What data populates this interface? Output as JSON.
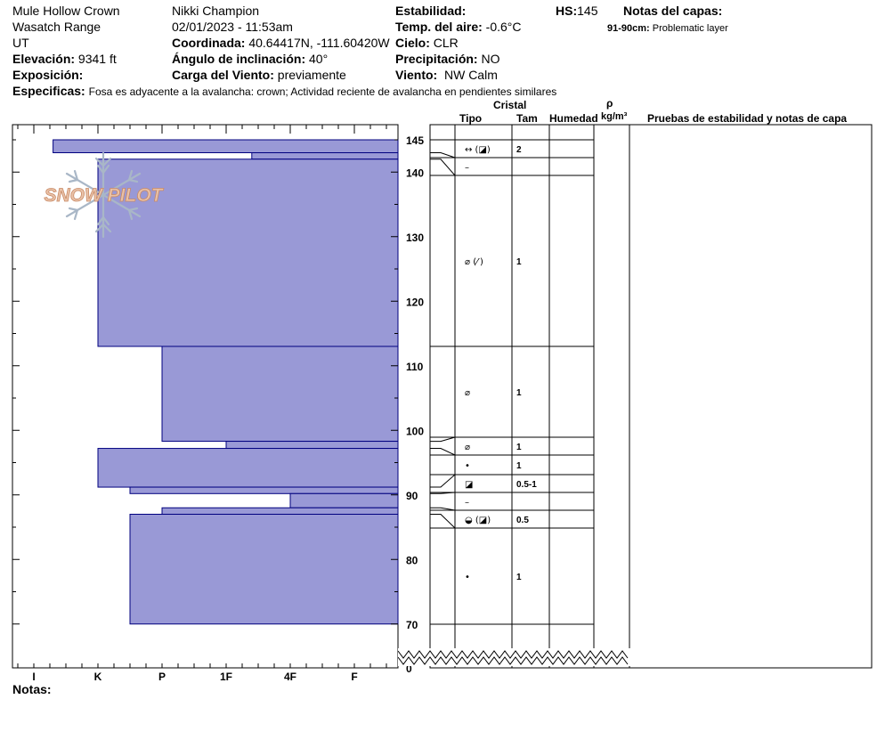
{
  "header": {
    "location": "Mule Hollow Crown",
    "range": "Wasatch Range",
    "state": "UT",
    "elevation_label": "Elevación:",
    "elevation": "9341 ft",
    "exposure_label": "Exposición:",
    "exposure": "",
    "observer": "Nikki Champion",
    "datetime": "02/01/2023 - 11:53am",
    "coord_label": "Coordinada:",
    "coord": "40.64417N, -111.60420W",
    "slope_label": "Ángulo de inclinación:",
    "slope": "40°",
    "wind_load_label": "Carga del Viento:",
    "wind_load": "previamente",
    "stability_label": "Estabilidad:",
    "stability": "",
    "air_temp_label": "Temp. del aire:",
    "air_temp": "-0.6°C",
    "sky_label": "Cielo:",
    "sky": "CLR",
    "precip_label": "Precipitación:",
    "precip": "NO",
    "wind_label": "Viento:",
    "wind": "NW Calm",
    "hs_label": "HS:",
    "hs": "145",
    "layer_notes_label": "Notas del capas:",
    "layer_note_range": "91-90cm:",
    "layer_note_text": "Problematic layer",
    "specifics_label": "Especificas:",
    "specifics": "Fosa es adyacente a la avalancha: crown;  Actividad reciente de avalancha en pendientes similares"
  },
  "columns": {
    "crystal": "Cristal",
    "type": "Tipo",
    "size": "Tam",
    "moisture": "Humedad",
    "rho": "ρ",
    "density_unit": "kg/m³",
    "tests": "Pruebas de estabilidad y notas de capa"
  },
  "footer": {
    "notes_label": "Notas:",
    "notes": ""
  },
  "logo_text": "SNOW PILOT",
  "colors": {
    "hardness_fill": "#9999d6",
    "hardness_stroke": "#00007f",
    "logo_orange": "#e9c2a8",
    "logo_blue": "#a9b7c7"
  },
  "chart_data": {
    "type": "bar",
    "orientation": "horizontal",
    "title": "",
    "hardness_scale": [
      "I",
      "K",
      "P",
      "1F",
      "4F",
      "F"
    ],
    "y_axis": {
      "range": [
        0,
        145
      ],
      "break_below": 70,
      "ticks": [
        145,
        140,
        130,
        120,
        110,
        100,
        90,
        80,
        70,
        0
      ]
    },
    "hardness_layers": [
      {
        "top": 145,
        "bottom": 143,
        "hardness_index": 0.3
      },
      {
        "top": 143,
        "bottom": 142,
        "hardness_index": 3.4
      },
      {
        "top": 142,
        "bottom": 113,
        "hardness_index": 1.0
      },
      {
        "top": 113,
        "bottom": 98.3,
        "hardness_index": 2.0
      },
      {
        "top": 98.3,
        "bottom": 97.2,
        "hardness_index": 3.0
      },
      {
        "top": 97.2,
        "bottom": 91.2,
        "hardness_index": 1.0
      },
      {
        "top": 91.2,
        "bottom": 90.2,
        "hardness_index": 1.5
      },
      {
        "top": 90.2,
        "bottom": 88.0,
        "hardness_index": 4.0
      },
      {
        "top": 88.0,
        "bottom": 87.0,
        "hardness_index": 2.0
      },
      {
        "top": 87.0,
        "bottom": 70.0,
        "hardness_index": 1.5
      }
    ],
    "crystal_layers": [
      {
        "top": 145,
        "bottom": 143,
        "type": "",
        "size": ""
      },
      {
        "top": 143,
        "bottom": 142,
        "type": "↔ (◪)",
        "size": "2"
      },
      {
        "top": 142,
        "bottom": 140,
        "type": "–",
        "size": ""
      },
      {
        "top": 140,
        "bottom": 113,
        "type": "⌀ (⁄′)",
        "size": "1"
      },
      {
        "top": 113,
        "bottom": 98.3,
        "type": "⌀",
        "size": "1"
      },
      {
        "top": 98.3,
        "bottom": 96.3,
        "type": "⌀",
        "size": "1"
      },
      {
        "top": 96.3,
        "bottom": 92.3,
        "type": "•",
        "size": "1"
      },
      {
        "top": 92.3,
        "bottom": 90.2,
        "type": "◪",
        "size": "0.5-1"
      },
      {
        "top": 90.2,
        "bottom": 88.0,
        "type": "–",
        "size": ""
      },
      {
        "top": 88.0,
        "bottom": 85.0,
        "type": "◒ (◪)",
        "size": "0.5"
      },
      {
        "top": 85.0,
        "bottom": 70.0,
        "type": "•",
        "size": "1"
      }
    ]
  }
}
